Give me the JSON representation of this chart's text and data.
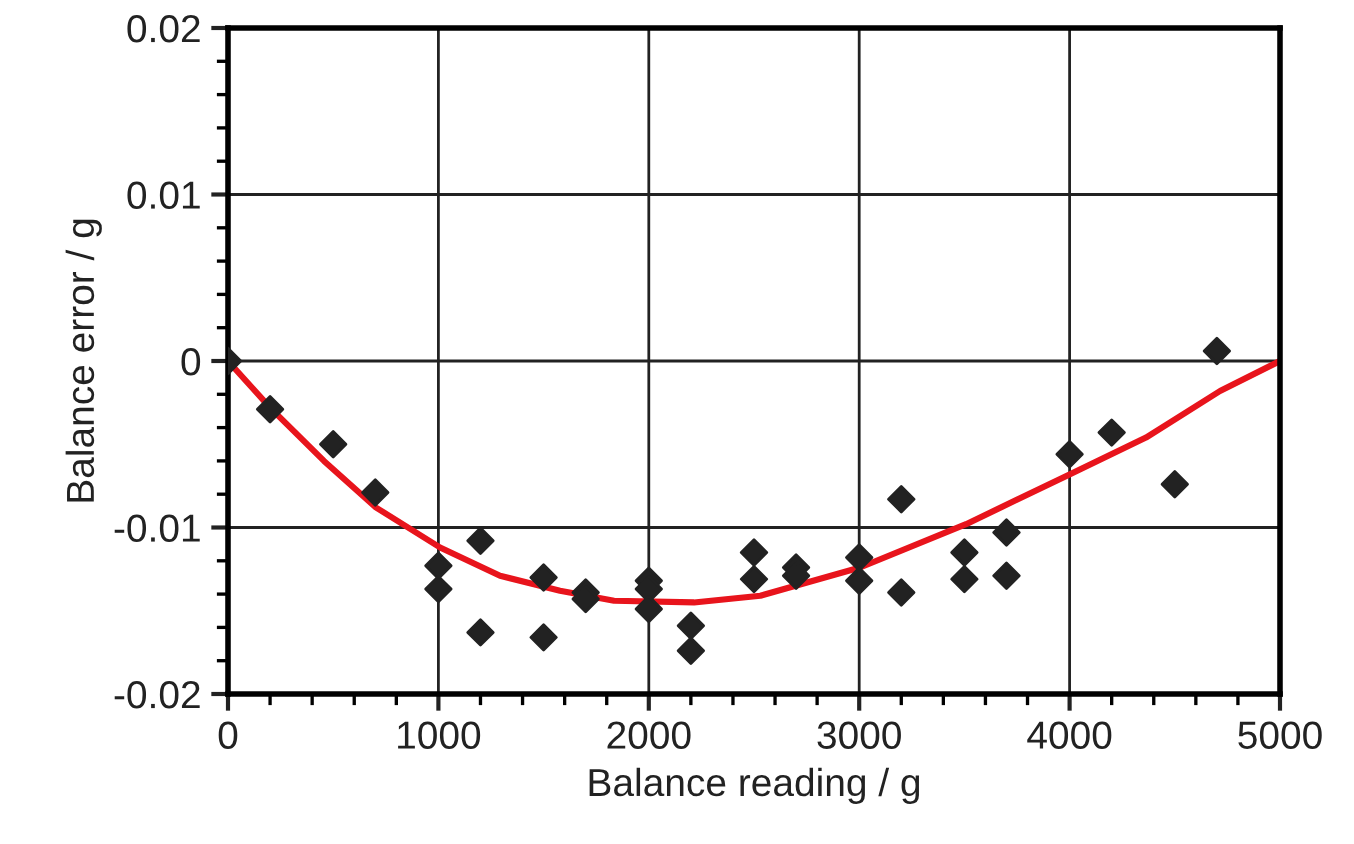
{
  "chart_data": {
    "type": "scatter",
    "xlabel": "Balance reading / g",
    "ylabel": "Balance error / g",
    "xlim": [
      0,
      5000
    ],
    "ylim": [
      -0.02,
      0.02
    ],
    "xticks": [
      0,
      1000,
      2000,
      3000,
      4000,
      5000
    ],
    "yticks": [
      {
        "value": -0.02,
        "label": "-0.02"
      },
      {
        "value": -0.01,
        "label": "-0.01"
      },
      0,
      0.01,
      0.02
    ],
    "grid": true,
    "legend": false,
    "series": [
      {
        "color": "#222222",
        "marker": "diamond",
        "x": [
          0,
          200,
          500,
          700,
          1000,
          1000,
          1200,
          1200,
          1500,
          1500,
          1700,
          1700,
          2000,
          2000,
          2000,
          2200,
          2200,
          2500,
          2500,
          2700,
          2700,
          3000,
          3000,
          3200,
          3200,
          3500,
          3500,
          3700,
          3700,
          4000,
          4200,
          4500,
          4700
        ],
        "values": [
          0,
          -0.0029,
          -0.005,
          -0.0079,
          -0.0123,
          -0.0137,
          -0.0108,
          -0.0163,
          -0.013,
          -0.0166,
          -0.0139,
          -0.0143,
          -0.0132,
          -0.0137,
          -0.0149,
          -0.0159,
          -0.0174,
          -0.0115,
          -0.0131,
          -0.0124,
          -0.0129,
          -0.0118,
          -0.0132,
          -0.0083,
          -0.0139,
          -0.0115,
          -0.0131,
          -0.0103,
          -0.0129,
          -0.0056,
          -0.0043,
          -0.0074,
          0.0006
        ]
      },
      {
        "type": "line",
        "color": "#e8141c",
        "marker": "none",
        "line_style": "solid",
        "x": [
          0,
          200,
          456,
          703,
          1008,
          1293,
          1578,
          1835,
          2215,
          2530,
          3004,
          3508,
          4002,
          4363,
          4715,
          5000
        ],
        "values": [
          0,
          -0.0028,
          -0.006,
          -0.0088,
          -0.0112,
          -0.0129,
          -0.0138,
          -0.0144,
          -0.0145,
          -0.0141,
          -0.0124,
          -0.0098,
          -0.0068,
          -0.0046,
          -0.0018,
          0
        ]
      }
    ]
  }
}
